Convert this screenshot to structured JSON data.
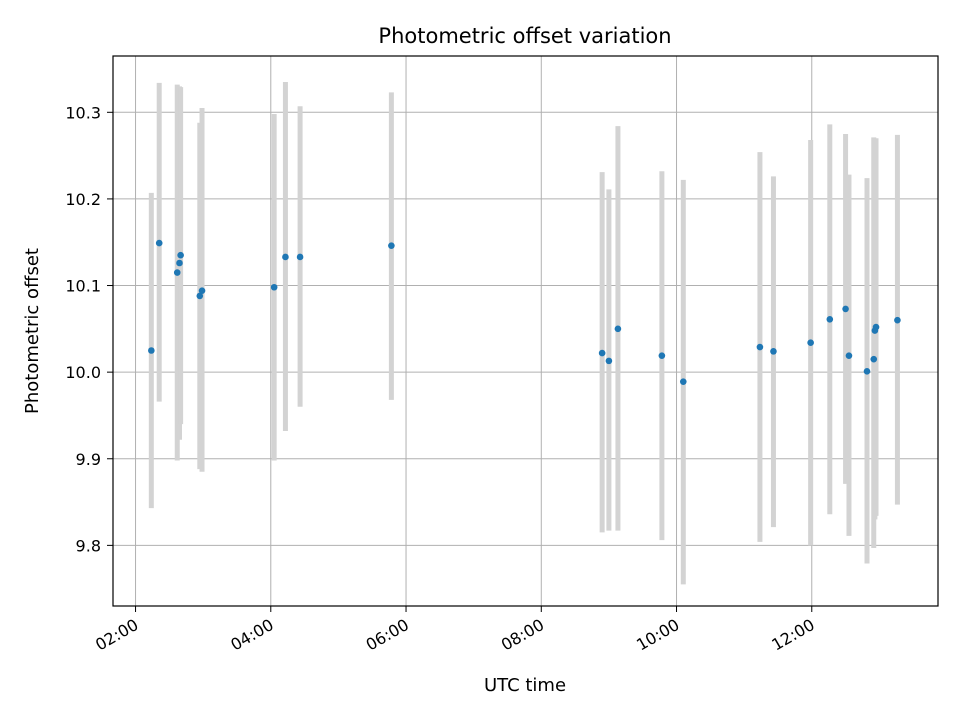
{
  "chart_data": {
    "type": "scatter",
    "title": "Photometric offset variation",
    "xlabel": "UTC time",
    "ylabel": "Photometric offset",
    "xlim": [
      "01:40",
      "13:52"
    ],
    "ylim": [
      9.73,
      10.365
    ],
    "grid": true,
    "x_ticks": [
      "02:00",
      "04:00",
      "06:00",
      "08:00",
      "10:00",
      "12:00"
    ],
    "y_ticks": [
      9.8,
      9.9,
      10.0,
      10.1,
      10.2,
      10.3
    ],
    "y_tick_labels": [
      "9.8",
      "9.9",
      "10.0",
      "10.1",
      "10.2",
      "10.3"
    ],
    "marker_color": "#1f77b4",
    "errorbar_color": "#d3d3d3",
    "points": [
      {
        "x": "02:14",
        "y": 10.025,
        "ylow": 9.843,
        "yhigh": 10.207
      },
      {
        "x": "02:21",
        "y": 10.149,
        "ylow": 9.966,
        "yhigh": 10.334
      },
      {
        "x": "02:37",
        "y": 10.115,
        "ylow": 9.898,
        "yhigh": 10.332
      },
      {
        "x": "02:39",
        "y": 10.126,
        "ylow": 9.922,
        "yhigh": 10.33
      },
      {
        "x": "02:40",
        "y": 10.135,
        "ylow": 9.94,
        "yhigh": 10.329
      },
      {
        "x": "02:57",
        "y": 10.088,
        "ylow": 9.888,
        "yhigh": 10.288
      },
      {
        "x": "02:59",
        "y": 10.094,
        "ylow": 9.885,
        "yhigh": 10.305
      },
      {
        "x": "04:03",
        "y": 10.098,
        "ylow": 9.898,
        "yhigh": 10.298
      },
      {
        "x": "04:13",
        "y": 10.133,
        "ylow": 9.932,
        "yhigh": 10.335
      },
      {
        "x": "04:26",
        "y": 10.133,
        "ylow": 9.96,
        "yhigh": 10.307
      },
      {
        "x": "05:47",
        "y": 10.146,
        "ylow": 9.968,
        "yhigh": 10.323
      },
      {
        "x": "08:54",
        "y": 10.022,
        "ylow": 9.815,
        "yhigh": 10.231
      },
      {
        "x": "09:00",
        "y": 10.013,
        "ylow": 9.817,
        "yhigh": 10.211
      },
      {
        "x": "09:08",
        "y": 10.05,
        "ylow": 9.817,
        "yhigh": 10.284
      },
      {
        "x": "09:47",
        "y": 10.019,
        "ylow": 9.806,
        "yhigh": 10.232
      },
      {
        "x": "10:06",
        "y": 9.989,
        "ylow": 9.755,
        "yhigh": 10.222
      },
      {
        "x": "11:14",
        "y": 10.029,
        "ylow": 9.804,
        "yhigh": 10.254
      },
      {
        "x": "11:26",
        "y": 10.024,
        "ylow": 9.821,
        "yhigh": 10.226
      },
      {
        "x": "11:59",
        "y": 10.034,
        "ylow": 9.8,
        "yhigh": 10.268
      },
      {
        "x": "12:16",
        "y": 10.061,
        "ylow": 9.836,
        "yhigh": 10.286
      },
      {
        "x": "12:30",
        "y": 10.073,
        "ylow": 9.871,
        "yhigh": 10.275
      },
      {
        "x": "12:33",
        "y": 10.019,
        "ylow": 9.811,
        "yhigh": 10.228
      },
      {
        "x": "12:49",
        "y": 10.001,
        "ylow": 9.779,
        "yhigh": 10.224
      },
      {
        "x": "12:55",
        "y": 10.015,
        "ylow": 9.797,
        "yhigh": 10.271
      },
      {
        "x": "12:56",
        "y": 10.048,
        "ylow": 9.83,
        "yhigh": 10.269
      },
      {
        "x": "12:57",
        "y": 10.052,
        "ylow": 9.834,
        "yhigh": 10.27
      },
      {
        "x": "13:16",
        "y": 10.06,
        "ylow": 9.847,
        "yhigh": 10.274
      }
    ]
  }
}
